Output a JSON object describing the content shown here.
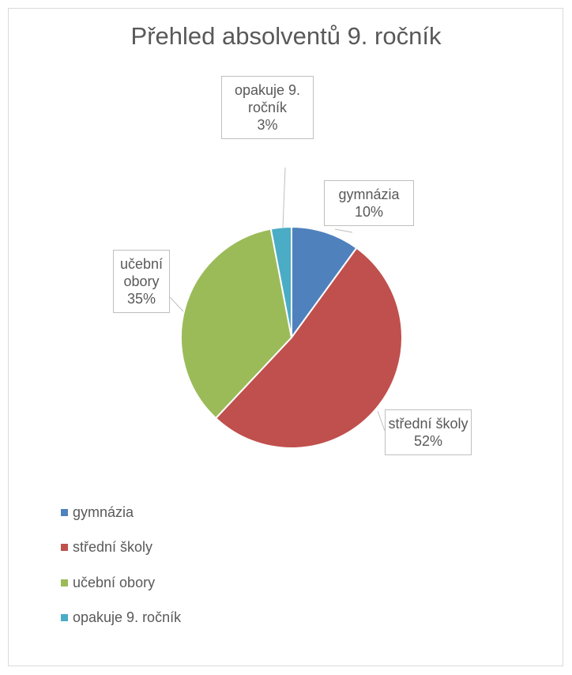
{
  "chart_data": {
    "type": "pie",
    "title": "Přehled absolventů 9. ročník",
    "categories": [
      "gymnázia",
      "střední školy",
      "učební obory",
      "opakuje 9. ročník"
    ],
    "values": [
      10,
      52,
      35,
      3
    ],
    "value_labels": [
      "10%",
      "52%",
      "35%",
      "3%"
    ],
    "colors": [
      "#4f81bd",
      "#c0504d",
      "#9bbb59",
      "#4bacc6"
    ],
    "legend": "bottom"
  }
}
